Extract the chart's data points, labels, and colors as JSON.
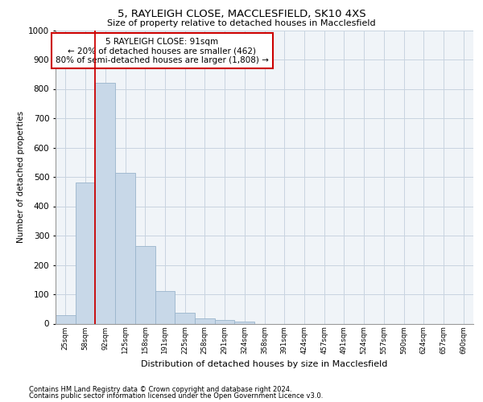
{
  "title_line1": "5, RAYLEIGH CLOSE, MACCLESFIELD, SK10 4XS",
  "title_line2": "Size of property relative to detached houses in Macclesfield",
  "xlabel": "Distribution of detached houses by size in Macclesfield",
  "ylabel": "Number of detached properties",
  "footer_line1": "Contains HM Land Registry data © Crown copyright and database right 2024.",
  "footer_line2": "Contains public sector information licensed under the Open Government Licence v3.0.",
  "bar_labels": [
    "25sqm",
    "58sqm",
    "92sqm",
    "125sqm",
    "158sqm",
    "191sqm",
    "225sqm",
    "258sqm",
    "291sqm",
    "324sqm",
    "358sqm",
    "391sqm",
    "424sqm",
    "457sqm",
    "491sqm",
    "524sqm",
    "557sqm",
    "590sqm",
    "624sqm",
    "657sqm",
    "690sqm"
  ],
  "bar_values": [
    28,
    480,
    820,
    515,
    265,
    110,
    38,
    18,
    12,
    8,
    0,
    0,
    0,
    0,
    0,
    0,
    0,
    0,
    0,
    0,
    0
  ],
  "bar_color": "#c8d8e8",
  "bar_edgecolor": "#9ab5cc",
  "ylim": [
    0,
    1000
  ],
  "yticks": [
    0,
    100,
    200,
    300,
    400,
    500,
    600,
    700,
    800,
    900,
    1000
  ],
  "redline_x": 2,
  "annotation_text": "5 RAYLEIGH CLOSE: 91sqm\n← 20% of detached houses are smaller (462)\n80% of semi-detached houses are larger (1,808) →",
  "annotation_box_color": "#ffffff",
  "annotation_box_edgecolor": "#cc0000",
  "bg_color": "#f0f4f8",
  "grid_color": "#c8d4e0"
}
